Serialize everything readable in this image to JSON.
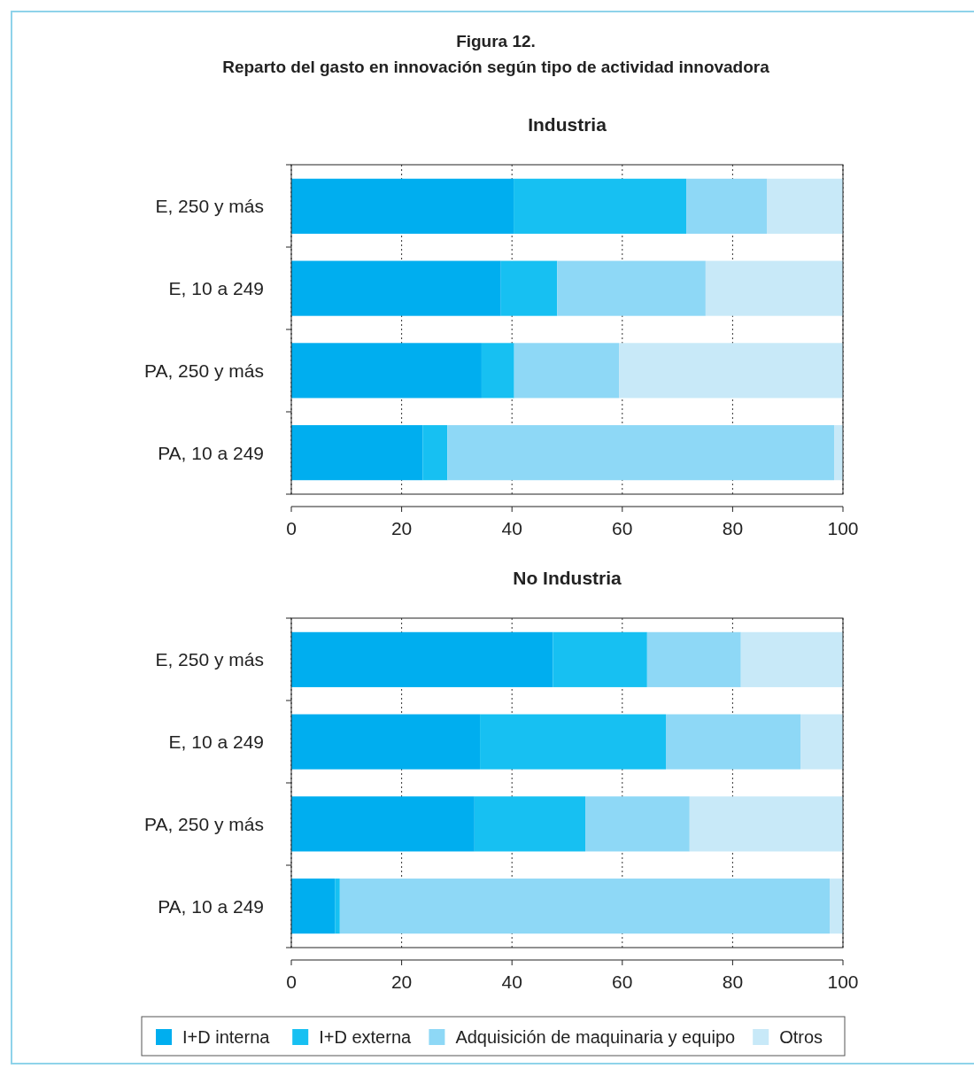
{
  "chart_data": [
    {
      "type": "bar",
      "orientation": "horizontal",
      "stacked": true,
      "title": "Industria",
      "annotations": [
        "Figura 12.",
        "Reparto del gasto en innovación según tipo de actividad innovadora"
      ],
      "categories": [
        "E, 250 y más",
        "E, 10 a 249",
        "PA, 250 y más",
        "PA, 10 a 249"
      ],
      "series": [
        {
          "color": "#00aeef",
          "values": [
            40.3,
            38.0,
            34.5,
            23.8
          ]
        },
        {
          "color": "#17c0f2",
          "values": [
            31.3,
            10.2,
            5.9,
            4.5
          ]
        },
        {
          "color": "#8ed8f6",
          "values": [
            14.6,
            26.9,
            19.0,
            70.1
          ]
        },
        {
          "color": "#c8e9f8",
          "values": [
            13.8,
            24.9,
            40.6,
            1.6
          ]
        }
      ],
      "xlim": [
        0,
        100
      ],
      "xticks": [
        0,
        20,
        40,
        60,
        80,
        100
      ],
      "grid": "x",
      "legend": false
    },
    {
      "type": "bar",
      "orientation": "horizontal",
      "stacked": true,
      "title": "No Industria",
      "categories": [
        "E, 250 y más",
        "E, 10 a 249",
        "PA, 250 y más",
        "PA, 10 a 249"
      ],
      "series": [
        {
          "name": "I+D interna",
          "color": "#00aeef",
          "values": [
            47.4,
            34.2,
            33.2,
            7.9
          ]
        },
        {
          "name": "I+D externa",
          "color": "#17c0f2",
          "values": [
            17.1,
            33.7,
            20.1,
            0.9
          ]
        },
        {
          "name": "Adquisición de maquinaria y equipo",
          "color": "#8ed8f6",
          "values": [
            17.0,
            24.4,
            18.9,
            88.8
          ]
        },
        {
          "name": "Otros",
          "color": "#c8e9f8",
          "values": [
            18.5,
            7.7,
            27.8,
            2.4
          ]
        }
      ],
      "xlim": [
        0,
        100
      ],
      "xticks": [
        0,
        20,
        40,
        60,
        80,
        100
      ],
      "grid": "x",
      "legend": "bottom"
    }
  ]
}
